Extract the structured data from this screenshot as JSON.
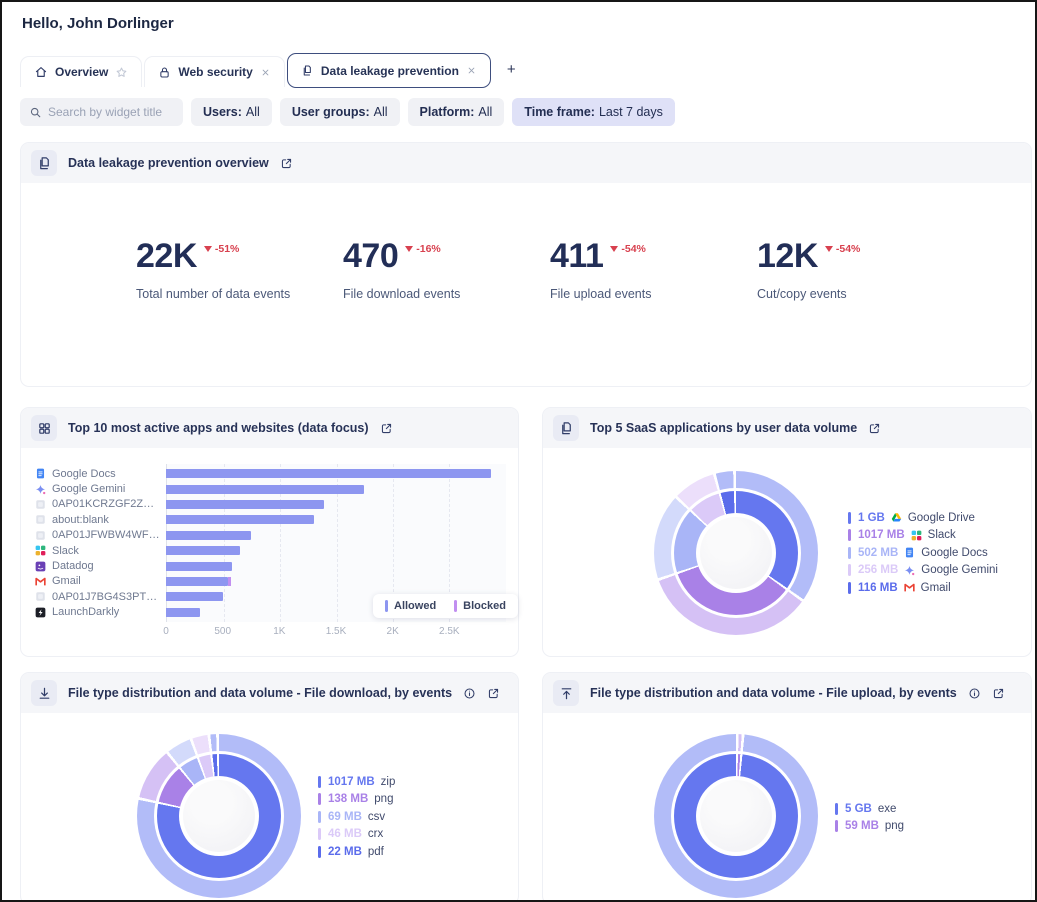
{
  "colors": {
    "accent_navy": "#222e57",
    "delta_red": "#d8414f",
    "bar_allowed": "#8d96f0",
    "bar_blocked": "#c18ff0",
    "timeframe_pill": "#dfe1f7",
    "palette_inner": [
      "#6577ef",
      "#a981e7",
      "#a9b5f7",
      "#dbcaf8",
      "#5b6ceb"
    ],
    "palette_outer": [
      "#b2bcf8",
      "#d5c1f5",
      "#d3dafb",
      "#ecdffb",
      "#b2bcf8"
    ]
  },
  "header": {
    "greeting": "Hello, John Dorlinger"
  },
  "tabs": {
    "items": [
      {
        "label": "Overview",
        "icon": "home",
        "active": false
      },
      {
        "label": "Web security",
        "icon": "lock",
        "active": false
      },
      {
        "label": "Data leakage prevention",
        "icon": "pages",
        "active": true
      }
    ],
    "add_label": "+"
  },
  "filters": {
    "search_placeholder": "Search by widget title",
    "pills": [
      {
        "label": "Users:",
        "value": "All",
        "highlighted": false
      },
      {
        "label": "User groups:",
        "value": "All",
        "highlighted": false
      },
      {
        "label": "Platform:",
        "value": "All",
        "highlighted": false
      },
      {
        "label": "Time frame:",
        "value": "Last 7 days",
        "highlighted": true
      }
    ]
  },
  "overview": {
    "title": "Data leakage prevention overview",
    "metrics": [
      {
        "value": "22K",
        "delta": "-51%",
        "label": "Total number of data events"
      },
      {
        "value": "470",
        "delta": "-16%",
        "label": "File download events"
      },
      {
        "value": "411",
        "delta": "-54%",
        "label": "File upload events"
      },
      {
        "value": "12K",
        "delta": "-54%",
        "label": "Cut/copy events"
      }
    ]
  },
  "widgets": {
    "top_apps": {
      "title": "Top 10 most active apps and websites (data focus)"
    },
    "saas": {
      "title": "Top 5 SaaS applications by user data volume"
    },
    "download": {
      "title": "File type distribution and data volume - File download, by events"
    },
    "upload": {
      "title": "File type distribution and data volume - File upload, by events"
    }
  },
  "chart_data": [
    {
      "id": "top_apps",
      "type": "bar",
      "orientation": "horizontal",
      "title": "Top 10 most active apps and websites (data focus)",
      "categories": [
        "Google Docs",
        "Google Gemini",
        "0AP01KCRZGF2ZEV5V...",
        "about:blank",
        "0AP01JFWBW4WFHV...",
        "Slack",
        "Datadog",
        "Gmail",
        "0AP01J7BG4S3PTMM...",
        "LaunchDarkly"
      ],
      "icons": [
        "google-docs",
        "google-gemini",
        "generic",
        "generic",
        "generic",
        "slack",
        "datadog",
        "gmail",
        "generic",
        "launchdarkly"
      ],
      "series": [
        {
          "name": "Allowed",
          "color": "#8d96f0",
          "values": [
            2870,
            1750,
            1390,
            1310,
            750,
            655,
            585,
            550,
            505,
            300
          ]
        },
        {
          "name": "Blocked",
          "color": "#c18ff0",
          "values": [
            0,
            0,
            0,
            0,
            0,
            0,
            0,
            25,
            0,
            0
          ]
        }
      ],
      "xlim": [
        0,
        3000
      ],
      "xticks": [
        {
          "v": 0,
          "label": "0"
        },
        {
          "v": 500,
          "label": "500"
        },
        {
          "v": 1000,
          "label": "1K"
        },
        {
          "v": 1500,
          "label": "1.5K"
        },
        {
          "v": 2000,
          "label": "2K"
        },
        {
          "v": 2500,
          "label": "2.5K"
        }
      ],
      "legend_position": "bottom-right",
      "grid": true
    },
    {
      "id": "saas",
      "type": "donut",
      "title": "Top 5 SaaS applications by user data volume",
      "rotation": 0,
      "items": [
        {
          "label": "Google Drive",
          "value_label": "1 GB",
          "value_mb": 1024,
          "icon": "google-drive"
        },
        {
          "label": "Slack",
          "value_label": "1017 MB",
          "value_mb": 1017,
          "icon": "slack"
        },
        {
          "label": "Google Docs",
          "value_label": "502 MB",
          "value_mb": 502,
          "icon": "google-docs"
        },
        {
          "label": "Google Gemini",
          "value_label": "256 MB",
          "value_mb": 256,
          "icon": "google-gemini"
        },
        {
          "label": "Gmail",
          "value_label": "116 MB",
          "value_mb": 116,
          "icon": "gmail"
        }
      ],
      "legend_position": "right"
    },
    {
      "id": "download",
      "type": "donut",
      "title": "File type distribution and data volume - File download, by events",
      "rotation": 0,
      "items": [
        {
          "label": "zip",
          "value_label": "1017 MB",
          "value_mb": 1017
        },
        {
          "label": "png",
          "value_label": "138 MB",
          "value_mb": 138
        },
        {
          "label": "csv",
          "value_label": "69 MB",
          "value_mb": 69
        },
        {
          "label": "crx",
          "value_label": "46 MB",
          "value_mb": 46
        },
        {
          "label": "pdf",
          "value_label": "22 MB",
          "value_mb": 22
        }
      ],
      "legend_position": "right"
    },
    {
      "id": "upload",
      "type": "donut",
      "title": "File type distribution and data volume - File upload, by events",
      "rotation": 6,
      "items": [
        {
          "label": "exe",
          "value_label": "5 GB",
          "value_mb": 5120
        },
        {
          "label": "png",
          "value_label": "59 MB",
          "value_mb": 59
        }
      ],
      "legend_position": "right"
    }
  ]
}
